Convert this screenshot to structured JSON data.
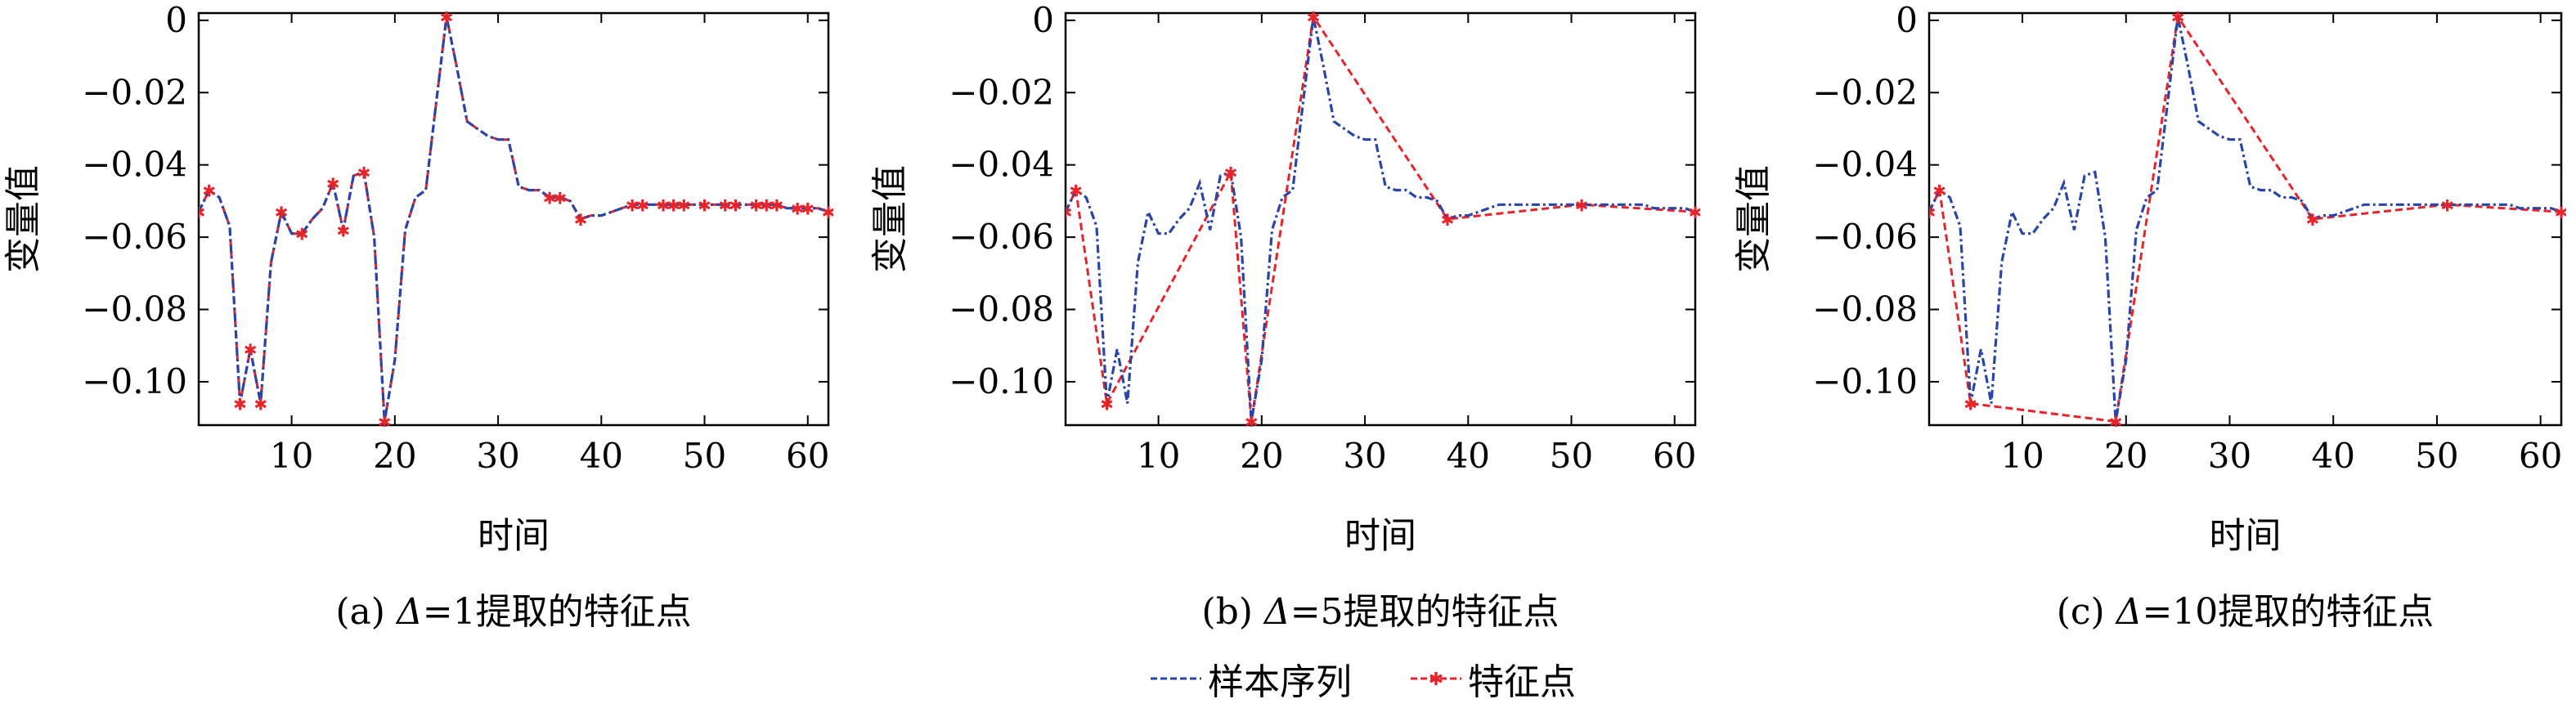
{
  "colors": {
    "sample": "#2a45a8",
    "feature": "#e8232a",
    "axis": "#000000"
  },
  "legend": [
    {
      "label": "样本序列",
      "icon": "dashed-line-icon"
    },
    {
      "label": "特征点",
      "icon": "dashed-star-line-icon"
    }
  ],
  "chart_data": [
    {
      "type": "line",
      "caption": {
        "prefix": "(a) ",
        "delta": "Δ",
        "rest": "=1提取的特征点"
      },
      "xlabel": "时间",
      "ylabel": "变量值",
      "xlim": [
        1,
        62
      ],
      "ylim": [
        -0.112,
        0.002
      ],
      "xticks": [
        10,
        20,
        30,
        40,
        50,
        60
      ],
      "yticks": [
        0,
        -0.02,
        -0.04,
        -0.06,
        -0.08,
        -0.1
      ],
      "ytick_labels": [
        "0",
        "−0.02",
        "−0.04",
        "−0.06",
        "−0.08",
        "−0.10"
      ],
      "series": [
        {
          "name": "样本序列",
          "x": [
            1,
            2,
            3,
            4,
            5,
            6,
            7,
            8,
            9,
            10,
            11,
            12,
            13,
            14,
            15,
            16,
            17,
            18,
            19,
            20,
            21,
            22,
            23,
            24,
            25,
            26,
            27,
            28,
            29,
            30,
            31,
            32,
            33,
            34,
            35,
            36,
            37,
            38,
            39,
            40,
            41,
            42,
            43,
            44,
            45,
            46,
            47,
            48,
            49,
            50,
            51,
            52,
            53,
            54,
            55,
            56,
            57,
            58,
            59,
            60,
            61,
            62
          ],
          "y": [
            -0.053,
            -0.047,
            -0.049,
            -0.057,
            -0.106,
            -0.091,
            -0.106,
            -0.067,
            -0.053,
            -0.059,
            -0.059,
            -0.055,
            -0.052,
            -0.045,
            -0.058,
            -0.043,
            -0.042,
            -0.06,
            -0.111,
            -0.094,
            -0.058,
            -0.049,
            -0.047,
            -0.023,
            0.001,
            -0.013,
            -0.028,
            -0.03,
            -0.032,
            -0.033,
            -0.033,
            -0.046,
            -0.047,
            -0.047,
            -0.049,
            -0.049,
            -0.05,
            -0.055,
            -0.054,
            -0.054,
            -0.053,
            -0.052,
            -0.051,
            -0.051,
            -0.051,
            -0.051,
            -0.051,
            -0.051,
            -0.051,
            -0.051,
            -0.051,
            -0.051,
            -0.051,
            -0.051,
            -0.051,
            -0.051,
            -0.051,
            -0.052,
            -0.052,
            -0.052,
            -0.052,
            -0.053
          ]
        },
        {
          "name": "特征点",
          "x": [
            1,
            2,
            3,
            4,
            5,
            6,
            7,
            8,
            9,
            10,
            11,
            12,
            13,
            14,
            15,
            16,
            17,
            18,
            19,
            20,
            21,
            22,
            23,
            24,
            25,
            26,
            27,
            28,
            29,
            30,
            31,
            32,
            33,
            34,
            35,
            36,
            37,
            38,
            39,
            40,
            41,
            42,
            43,
            44,
            45,
            46,
            47,
            48,
            49,
            50,
            51,
            52,
            53,
            54,
            55,
            56,
            57,
            58,
            59,
            60,
            61,
            62
          ],
          "y": [
            -0.053,
            -0.047,
            -0.049,
            -0.057,
            -0.106,
            -0.091,
            -0.106,
            -0.067,
            -0.053,
            -0.059,
            -0.059,
            -0.055,
            -0.052,
            -0.045,
            -0.058,
            -0.043,
            -0.042,
            -0.06,
            -0.111,
            -0.094,
            -0.058,
            -0.049,
            -0.047,
            -0.023,
            0.001,
            -0.013,
            -0.028,
            -0.03,
            -0.032,
            -0.033,
            -0.033,
            -0.046,
            -0.047,
            -0.047,
            -0.049,
            -0.049,
            -0.05,
            -0.055,
            -0.054,
            -0.054,
            -0.053,
            -0.052,
            -0.051,
            -0.051,
            -0.051,
            -0.051,
            -0.051,
            -0.051,
            -0.051,
            -0.051,
            -0.051,
            -0.051,
            -0.051,
            -0.051,
            -0.051,
            -0.051,
            -0.051,
            -0.052,
            -0.052,
            -0.052,
            -0.052,
            -0.053
          ],
          "markers": [
            {
              "x": 1,
              "y": -0.053
            },
            {
              "x": 2,
              "y": -0.047
            },
            {
              "x": 5,
              "y": -0.106
            },
            {
              "x": 6,
              "y": -0.091
            },
            {
              "x": 7,
              "y": -0.106
            },
            {
              "x": 9,
              "y": -0.053
            },
            {
              "x": 11,
              "y": -0.059
            },
            {
              "x": 14,
              "y": -0.045
            },
            {
              "x": 15,
              "y": -0.058
            },
            {
              "x": 17,
              "y": -0.042
            },
            {
              "x": 19,
              "y": -0.111
            },
            {
              "x": 25,
              "y": 0.001
            },
            {
              "x": 35,
              "y": -0.049
            },
            {
              "x": 36,
              "y": -0.049
            },
            {
              "x": 38,
              "y": -0.055
            },
            {
              "x": 43,
              "y": -0.051
            },
            {
              "x": 44,
              "y": -0.051
            },
            {
              "x": 46,
              "y": -0.051
            },
            {
              "x": 47,
              "y": -0.051
            },
            {
              "x": 48,
              "y": -0.051
            },
            {
              "x": 50,
              "y": -0.051
            },
            {
              "x": 52,
              "y": -0.051
            },
            {
              "x": 53,
              "y": -0.051
            },
            {
              "x": 55,
              "y": -0.051
            },
            {
              "x": 56,
              "y": -0.051
            },
            {
              "x": 57,
              "y": -0.051
            },
            {
              "x": 59,
              "y": -0.052
            },
            {
              "x": 60,
              "y": -0.052
            },
            {
              "x": 62,
              "y": -0.053
            }
          ]
        }
      ]
    },
    {
      "type": "line",
      "caption": {
        "prefix": "(b) ",
        "delta": "Δ",
        "rest": "=5提取的特征点"
      },
      "xlabel": "时间",
      "ylabel": "变量值",
      "xlim": [
        1,
        62
      ],
      "ylim": [
        -0.112,
        0.002
      ],
      "xticks": [
        10,
        20,
        30,
        40,
        50,
        60
      ],
      "yticks": [
        0,
        -0.02,
        -0.04,
        -0.06,
        -0.08,
        -0.1
      ],
      "ytick_labels": [
        "0",
        "−0.02",
        "−0.04",
        "−0.06",
        "−0.08",
        "−0.10"
      ],
      "series": [
        {
          "name": "样本序列",
          "x": [
            1,
            2,
            3,
            4,
            5,
            6,
            7,
            8,
            9,
            10,
            11,
            12,
            13,
            14,
            15,
            16,
            17,
            18,
            19,
            20,
            21,
            22,
            23,
            24,
            25,
            26,
            27,
            28,
            29,
            30,
            31,
            32,
            33,
            34,
            35,
            36,
            37,
            38,
            39,
            40,
            41,
            42,
            43,
            44,
            45,
            46,
            47,
            48,
            49,
            50,
            51,
            52,
            53,
            54,
            55,
            56,
            57,
            58,
            59,
            60,
            61,
            62
          ],
          "y": [
            -0.053,
            -0.047,
            -0.049,
            -0.057,
            -0.106,
            -0.091,
            -0.106,
            -0.067,
            -0.053,
            -0.059,
            -0.059,
            -0.055,
            -0.052,
            -0.045,
            -0.058,
            -0.043,
            -0.042,
            -0.06,
            -0.111,
            -0.094,
            -0.058,
            -0.049,
            -0.047,
            -0.023,
            0.001,
            -0.013,
            -0.028,
            -0.03,
            -0.032,
            -0.033,
            -0.033,
            -0.046,
            -0.047,
            -0.047,
            -0.049,
            -0.049,
            -0.05,
            -0.055,
            -0.054,
            -0.054,
            -0.053,
            -0.052,
            -0.051,
            -0.051,
            -0.051,
            -0.051,
            -0.051,
            -0.051,
            -0.051,
            -0.051,
            -0.051,
            -0.051,
            -0.051,
            -0.051,
            -0.051,
            -0.051,
            -0.051,
            -0.052,
            -0.052,
            -0.052,
            -0.052,
            -0.053
          ]
        },
        {
          "name": "特征点",
          "x": [
            1,
            2,
            5,
            17,
            19,
            25,
            38,
            51,
            62
          ],
          "y": [
            -0.053,
            -0.047,
            -0.106,
            -0.042,
            -0.111,
            0.001,
            -0.055,
            -0.051,
            -0.053
          ],
          "markers": [
            {
              "x": 1,
              "y": -0.053
            },
            {
              "x": 2,
              "y": -0.047
            },
            {
              "x": 5,
              "y": -0.106
            },
            {
              "x": 17,
              "y": -0.042
            },
            {
              "x": 19,
              "y": -0.111
            },
            {
              "x": 25,
              "y": 0.001
            },
            {
              "x": 38,
              "y": -0.055
            },
            {
              "x": 51,
              "y": -0.051
            },
            {
              "x": 62,
              "y": -0.053
            }
          ]
        }
      ]
    },
    {
      "type": "line",
      "caption": {
        "prefix": "(c) ",
        "delta": "Δ",
        "rest": "=10提取的特征点"
      },
      "xlabel": "时间",
      "ylabel": "变量值",
      "xlim": [
        1,
        62
      ],
      "ylim": [
        -0.112,
        0.002
      ],
      "xticks": [
        10,
        20,
        30,
        40,
        50,
        60
      ],
      "yticks": [
        0,
        -0.02,
        -0.04,
        -0.06,
        -0.08,
        -0.1
      ],
      "ytick_labels": [
        "0",
        "−0.02",
        "−0.04",
        "−0.06",
        "−0.08",
        "−0.10"
      ],
      "series": [
        {
          "name": "样本序列",
          "x": [
            1,
            2,
            3,
            4,
            5,
            6,
            7,
            8,
            9,
            10,
            11,
            12,
            13,
            14,
            15,
            16,
            17,
            18,
            19,
            20,
            21,
            22,
            23,
            24,
            25,
            26,
            27,
            28,
            29,
            30,
            31,
            32,
            33,
            34,
            35,
            36,
            37,
            38,
            39,
            40,
            41,
            42,
            43,
            44,
            45,
            46,
            47,
            48,
            49,
            50,
            51,
            52,
            53,
            54,
            55,
            56,
            57,
            58,
            59,
            60,
            61,
            62
          ],
          "y": [
            -0.053,
            -0.047,
            -0.049,
            -0.057,
            -0.106,
            -0.091,
            -0.106,
            -0.067,
            -0.053,
            -0.059,
            -0.059,
            -0.055,
            -0.052,
            -0.045,
            -0.058,
            -0.043,
            -0.042,
            -0.06,
            -0.111,
            -0.094,
            -0.058,
            -0.049,
            -0.047,
            -0.023,
            0.001,
            -0.013,
            -0.028,
            -0.03,
            -0.032,
            -0.033,
            -0.033,
            -0.046,
            -0.047,
            -0.047,
            -0.049,
            -0.049,
            -0.05,
            -0.055,
            -0.054,
            -0.054,
            -0.053,
            -0.052,
            -0.051,
            -0.051,
            -0.051,
            -0.051,
            -0.051,
            -0.051,
            -0.051,
            -0.051,
            -0.051,
            -0.051,
            -0.051,
            -0.051,
            -0.051,
            -0.051,
            -0.051,
            -0.052,
            -0.052,
            -0.052,
            -0.052,
            -0.053
          ]
        },
        {
          "name": "特征点",
          "x": [
            1,
            2,
            5,
            19,
            25,
            38,
            51,
            62
          ],
          "y": [
            -0.053,
            -0.047,
            -0.106,
            -0.111,
            0.001,
            -0.055,
            -0.051,
            -0.053
          ],
          "markers": [
            {
              "x": 1,
              "y": -0.053
            },
            {
              "x": 2,
              "y": -0.047
            },
            {
              "x": 5,
              "y": -0.106
            },
            {
              "x": 19,
              "y": -0.111
            },
            {
              "x": 25,
              "y": 0.001
            },
            {
              "x": 38,
              "y": -0.055
            },
            {
              "x": 51,
              "y": -0.051
            },
            {
              "x": 62,
              "y": -0.053
            }
          ]
        }
      ]
    }
  ]
}
